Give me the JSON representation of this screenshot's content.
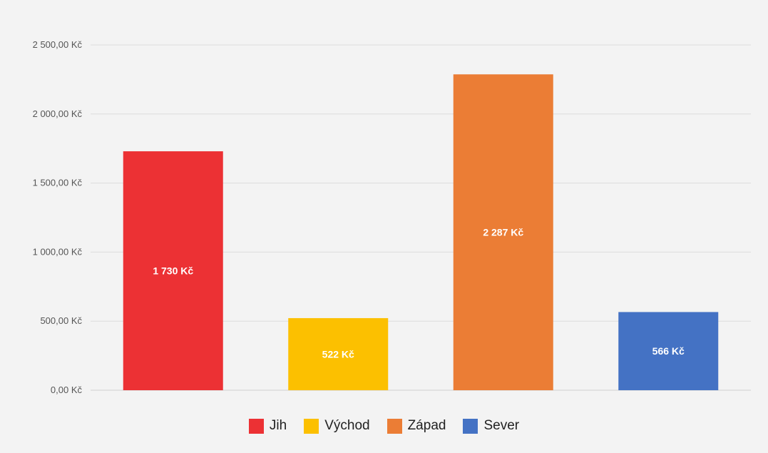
{
  "chart_data": {
    "type": "bar",
    "categories": [
      "Jih",
      "Východ",
      "Západ",
      "Sever"
    ],
    "values": [
      1730,
      522,
      2287,
      566
    ],
    "data_labels": [
      "1 730 Kč",
      "522 Kč",
      "2 287 Kč",
      "566 Kč"
    ],
    "colors": [
      "#ec3134",
      "#fcc000",
      "#eb7d35",
      "#4472c4"
    ],
    "ylim": [
      0,
      2500
    ],
    "yticks": [
      0,
      500,
      1000,
      1500,
      2000,
      2500
    ],
    "ytick_labels": [
      "0,00 Kč",
      "500,00 Kč",
      "1 000,00 Kč",
      "1 500,00 Kč",
      "2 000,00 Kč",
      "2 500,00 Kč"
    ],
    "grid": true,
    "legend_position": "bottom"
  },
  "legend": [
    {
      "label": "Jih",
      "color": "#ec3134"
    },
    {
      "label": "Východ",
      "color": "#fcc000"
    },
    {
      "label": "Západ",
      "color": "#eb7d35"
    },
    {
      "label": "Sever",
      "color": "#4472c4"
    }
  ]
}
